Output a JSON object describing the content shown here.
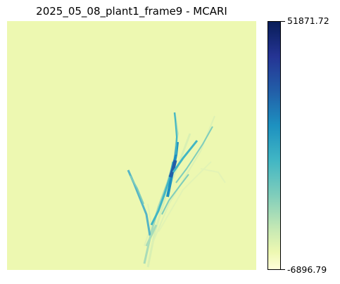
{
  "figure": {
    "title": "2025_05_08_plant1_frame9 - MCARI"
  },
  "colorbar": {
    "max_label": "51871.72",
    "min_label": "-6896.79",
    "max_value": 51871.72,
    "min_value": -6896.79,
    "colormap": "YlGnBu",
    "background_color": "#edf8b1"
  }
}
